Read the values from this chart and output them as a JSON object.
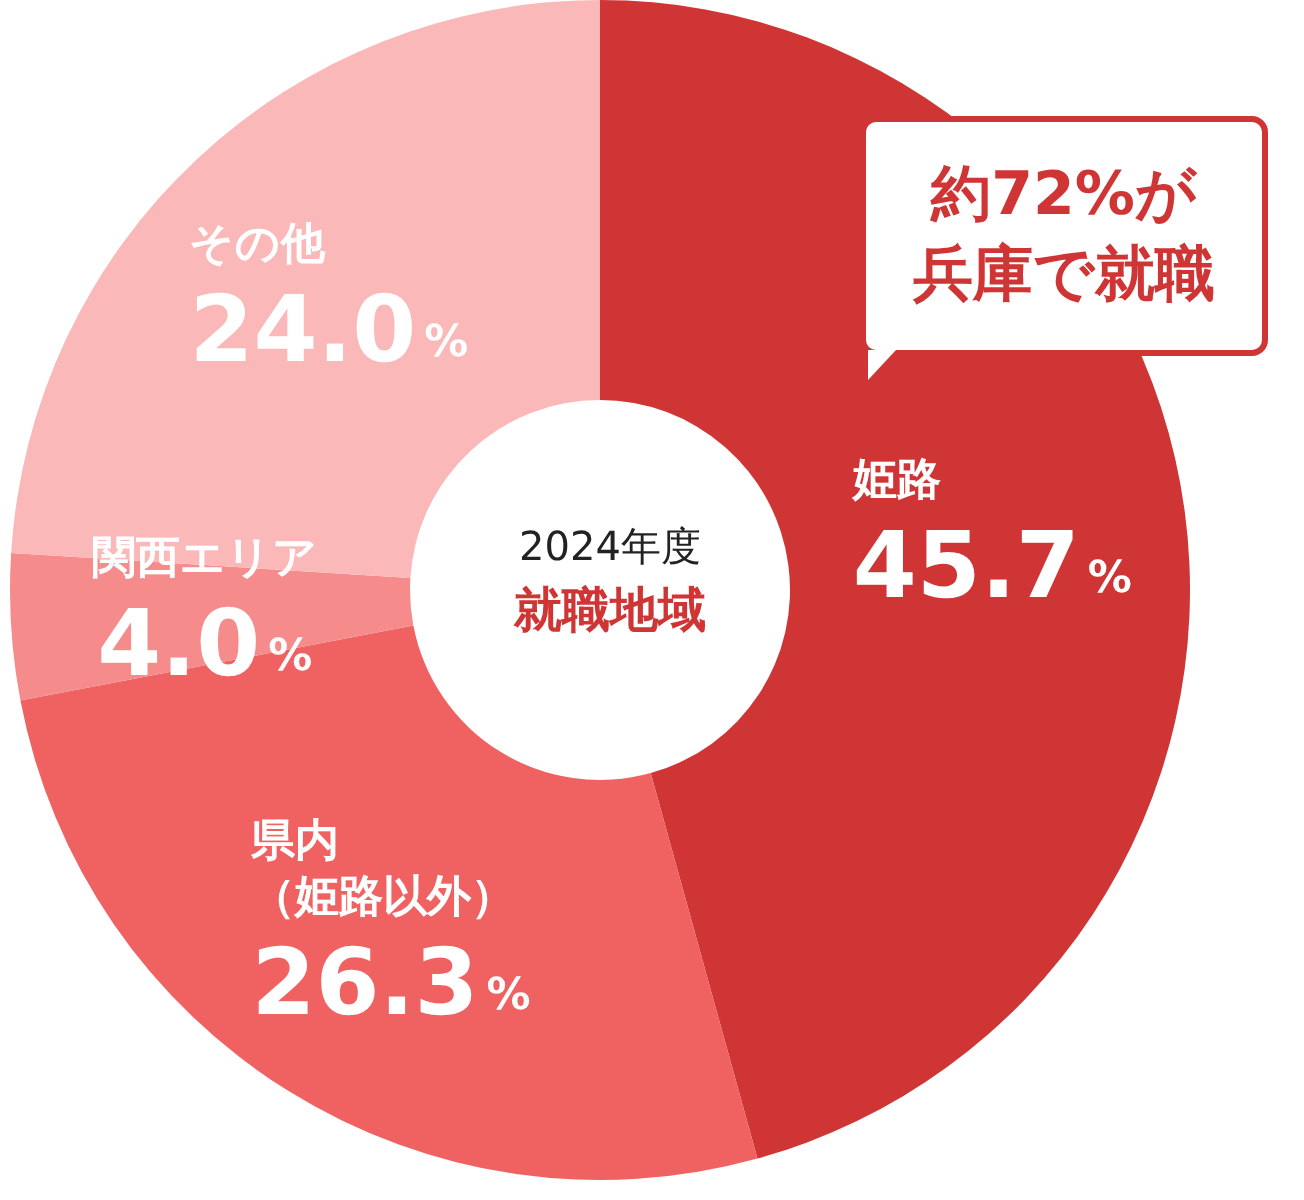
{
  "chart_data": {
    "type": "donut",
    "title": "2024年度",
    "subtitle": "就職地域",
    "categories": [
      "姫路",
      "県内（姫路以外）",
      "関西エリア",
      "その他"
    ],
    "values": [
      45.7,
      26.3,
      4.0,
      24.0
    ],
    "colors": [
      "#d03535",
      "#f06262",
      "#f58b8b",
      "#fbb8b8"
    ],
    "value_labels": [
      "45.7%",
      "26.3%",
      "4.0%",
      "24.0%"
    ],
    "annotations": [
      "約72%が兵庫で就職"
    ],
    "legend": false
  }
}
